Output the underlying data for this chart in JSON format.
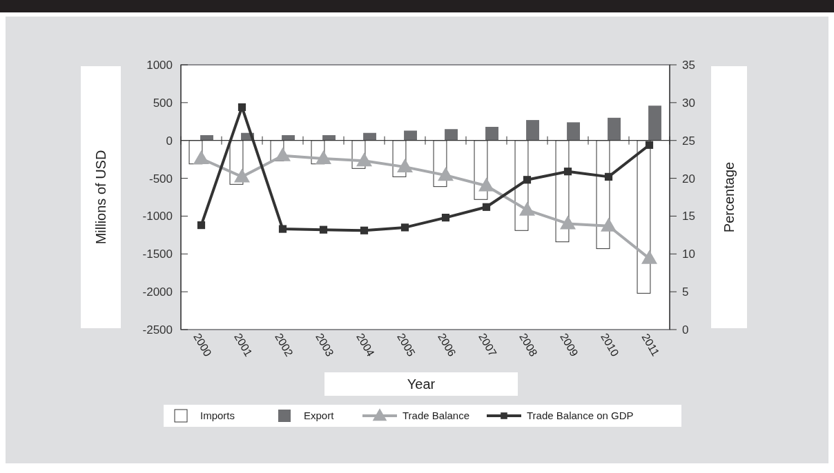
{
  "chart_data": {
    "type": "bar",
    "xlabel": "Year",
    "ylabel": "Millions of USD",
    "y2label": "Percentage",
    "categories": [
      "2000",
      "2001",
      "2002",
      "2003",
      "2004",
      "2005",
      "2006",
      "2007",
      "2008",
      "2009",
      "2010",
      "2011"
    ],
    "series": [
      {
        "name": "Imports",
        "color": "#ffffff",
        "values": [
          -310,
          -580,
          -270,
          -310,
          -370,
          -480,
          -610,
          -780,
          -1190,
          -1340,
          -1430,
          -2020
        ]
      },
      {
        "name": "Export",
        "color": "#6d6e71",
        "values": [
          70,
          100,
          70,
          70,
          100,
          130,
          150,
          180,
          270,
          240,
          300,
          460
        ]
      },
      {
        "name": "Trade Balance",
        "type": "line",
        "color": "#a7a9ac",
        "marker": "triangle",
        "values": [
          -240,
          -480,
          -200,
          -240,
          -270,
          -350,
          -460,
          -600,
          -920,
          -1100,
          -1130,
          -1560
        ]
      },
      {
        "name": "Trade Balance on GDP",
        "type": "line",
        "axis": "y2",
        "color": "#333333",
        "marker": "square",
        "values": [
          13.8,
          29.4,
          13.3,
          13.2,
          13.1,
          13.5,
          14.8,
          16.2,
          19.8,
          20.9,
          20.2,
          24.4
        ]
      }
    ],
    "ylim": [
      -2500,
      1000
    ],
    "yticks": [
      -2500,
      -2000,
      -1500,
      -1000,
      -500,
      0,
      500,
      1000
    ],
    "y2lim": [
      0,
      35
    ],
    "y2ticks": [
      0,
      5,
      10,
      15,
      20,
      25,
      30,
      35
    ],
    "legend": "bottom"
  }
}
